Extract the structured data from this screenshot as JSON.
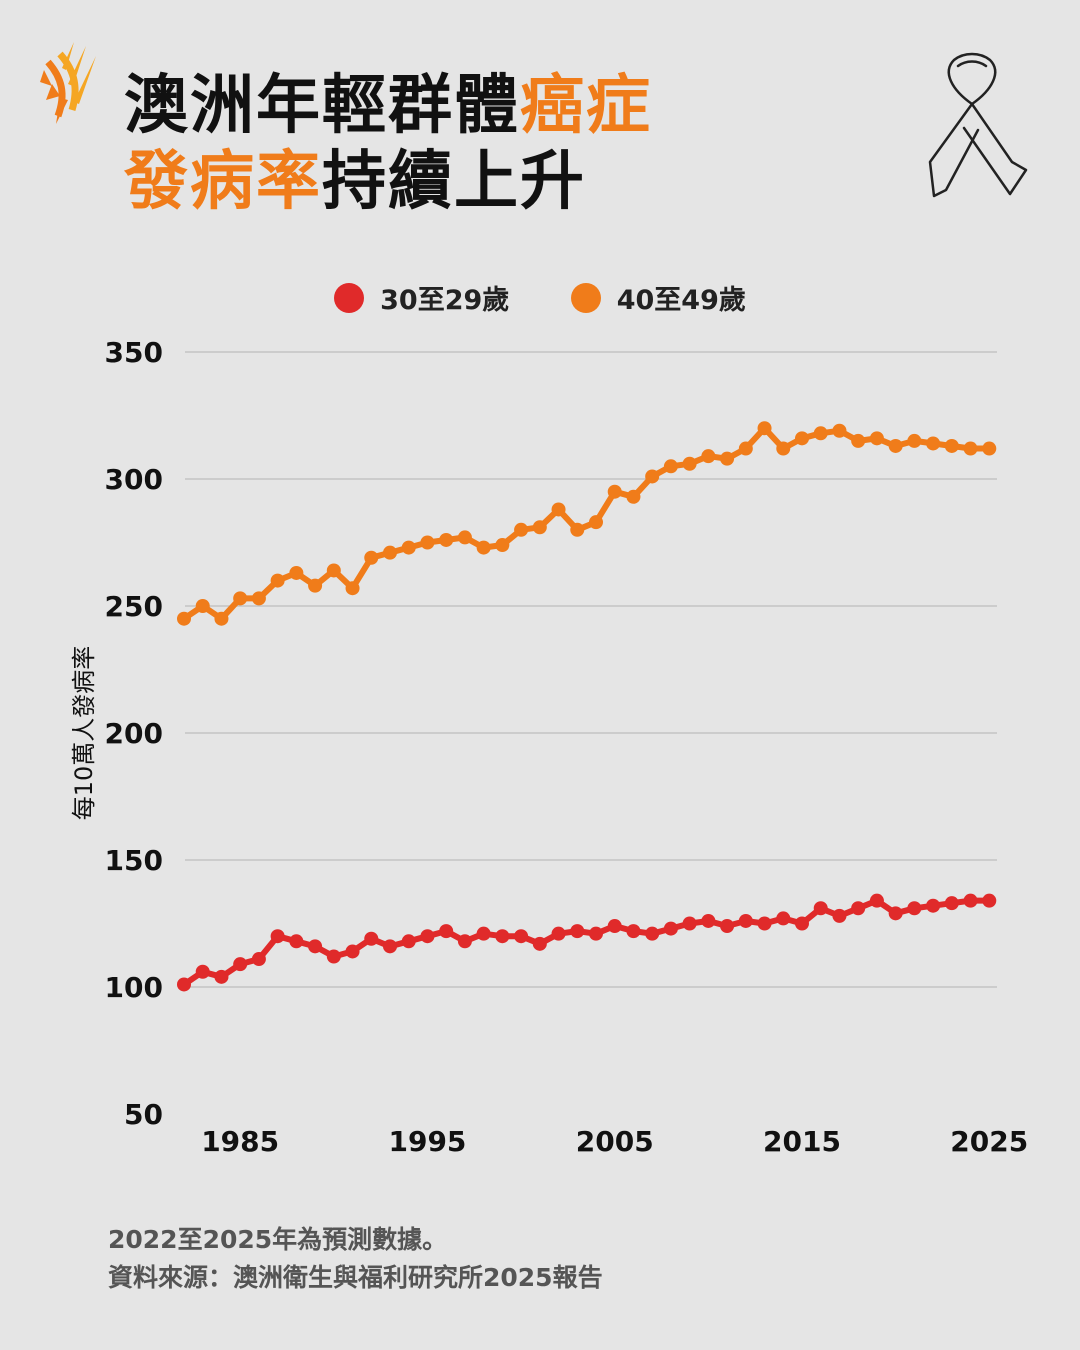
{
  "title": {
    "line1_black": "澳洲年輕群體",
    "line1_orange": "癌症",
    "line2_orange": "發病率",
    "line2_black": "持續上升"
  },
  "icons": {
    "logo": "sbs-logo-icon",
    "ribbon": "awareness-ribbon-icon"
  },
  "colors": {
    "accent": "#f07c1a",
    "series_a": "#e02a2a",
    "series_b": "#f07c1a",
    "background": "#e5e5e5"
  },
  "chart_data": {
    "type": "line",
    "ylabel": "每10萬人發病率",
    "xlabel": "",
    "ylim": [
      50,
      350
    ],
    "xlim": [
      1982,
      2026
    ],
    "yticks": [
      50,
      100,
      150,
      200,
      250,
      300,
      350
    ],
    "xticks": [
      1985,
      1995,
      2005,
      2015,
      2025
    ],
    "grid": true,
    "legend_position": "top-center",
    "x": [
      1982,
      1983,
      1984,
      1985,
      1986,
      1987,
      1988,
      1989,
      1990,
      1991,
      1992,
      1993,
      1994,
      1995,
      1996,
      1997,
      1998,
      1999,
      2000,
      2001,
      2002,
      2003,
      2004,
      2005,
      2006,
      2007,
      2008,
      2009,
      2010,
      2011,
      2012,
      2013,
      2014,
      2015,
      2016,
      2017,
      2018,
      2019,
      2020,
      2021,
      2022,
      2023,
      2024,
      2025
    ],
    "series": [
      {
        "name": "30至29歲",
        "color": "#e02a2a",
        "values": [
          101,
          106,
          104,
          109,
          111,
          120,
          118,
          116,
          112,
          114,
          119,
          116,
          118,
          120,
          122,
          118,
          121,
          120,
          120,
          117,
          121,
          122,
          121,
          124,
          122,
          121,
          123,
          125,
          126,
          124,
          126,
          125,
          127,
          125,
          131,
          128,
          131,
          134,
          129,
          131,
          132,
          133,
          134,
          134
        ]
      },
      {
        "name": "40至49歲",
        "color": "#f07c1a",
        "values": [
          245,
          250,
          245,
          253,
          253,
          260,
          263,
          258,
          264,
          257,
          269,
          271,
          273,
          275,
          276,
          277,
          273,
          274,
          280,
          281,
          288,
          280,
          283,
          295,
          293,
          301,
          305,
          306,
          309,
          308,
          312,
          320,
          312,
          316,
          318,
          319,
          315,
          316,
          313,
          315,
          314,
          313,
          312,
          312
        ]
      }
    ]
  },
  "footnotes": [
    "2022至2025年為預測數據。",
    "資料來源：澳洲衛生與福利研究所2025報告"
  ]
}
